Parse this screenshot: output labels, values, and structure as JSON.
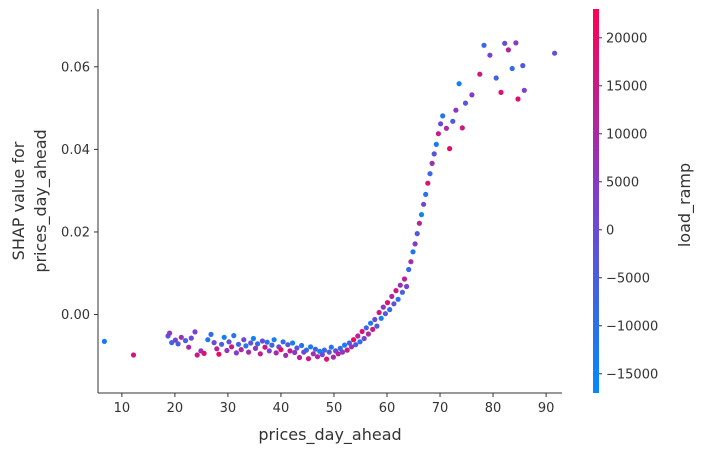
{
  "chart_data": {
    "type": "scatter",
    "title": "",
    "xlabel": "prices_day_ahead",
    "ylabel_lines": [
      "SHAP value for",
      "prices_day_ahead"
    ],
    "xlim": [
      5.5,
      93
    ],
    "ylim": [
      -0.019,
      0.074
    ],
    "xticks": [
      10,
      20,
      30,
      40,
      50,
      60,
      70,
      80,
      90
    ],
    "xtick_labels": [
      "10",
      "20",
      "30",
      "40",
      "50",
      "60",
      "70",
      "80",
      "90"
    ],
    "yticks": [
      0.0,
      0.02,
      0.04,
      0.06
    ],
    "ytick_labels": [
      "0.00",
      "0.02",
      "0.04",
      "0.06"
    ],
    "grid": false,
    "colorbar": {
      "label": "load_ramp",
      "range": [
        -17000,
        23000
      ],
      "ticks": [
        20000,
        15000,
        10000,
        5000,
        0,
        -5000,
        -10000,
        -15000
      ],
      "tick_labels": [
        "20000",
        "15000",
        "10000",
        "5000",
        "0",
        "−5000",
        "−10000",
        "−15000"
      ],
      "color_low": "#008afb",
      "color_mid": "#7c3fd0",
      "color_high": "#ff0052"
    },
    "points": [
      {
        "x": 6.7,
        "y": -0.0065,
        "c": -13000
      },
      {
        "x": 12.2,
        "y": -0.0098,
        "c": 16000
      },
      {
        "x": 18.7,
        "y": -0.0052,
        "c": -3000
      },
      {
        "x": 19.0,
        "y": -0.0045,
        "c": 5000
      },
      {
        "x": 19.4,
        "y": -0.0068,
        "c": -8000
      },
      {
        "x": 20.1,
        "y": -0.0062,
        "c": 2000
      },
      {
        "x": 20.6,
        "y": -0.0071,
        "c": -4000
      },
      {
        "x": 21.2,
        "y": -0.0055,
        "c": 8000
      },
      {
        "x": 22.0,
        "y": -0.0063,
        "c": -6000
      },
      {
        "x": 22.6,
        "y": -0.0079,
        "c": 10000
      },
      {
        "x": 23.1,
        "y": -0.0057,
        "c": -1000
      },
      {
        "x": 23.8,
        "y": -0.0042,
        "c": 3000
      },
      {
        "x": 24.2,
        "y": -0.0098,
        "c": 14000
      },
      {
        "x": 24.9,
        "y": -0.0088,
        "c": 6000
      },
      {
        "x": 25.5,
        "y": -0.0094,
        "c": 18000
      },
      {
        "x": 26.2,
        "y": -0.0061,
        "c": -12000
      },
      {
        "x": 26.8,
        "y": -0.0048,
        "c": -9000
      },
      {
        "x": 27.4,
        "y": -0.0068,
        "c": 0
      },
      {
        "x": 27.9,
        "y": -0.0083,
        "c": 12000
      },
      {
        "x": 28.3,
        "y": -0.0096,
        "c": 20000
      },
      {
        "x": 28.8,
        "y": -0.0072,
        "c": -5000
      },
      {
        "x": 29.3,
        "y": -0.0055,
        "c": -14000
      },
      {
        "x": 29.8,
        "y": -0.0087,
        "c": 7000
      },
      {
        "x": 30.2,
        "y": -0.0066,
        "c": -2000
      },
      {
        "x": 30.7,
        "y": -0.0078,
        "c": 15000
      },
      {
        "x": 31.1,
        "y": -0.0051,
        "c": -10000
      },
      {
        "x": 31.6,
        "y": -0.0093,
        "c": 4000
      },
      {
        "x": 32.0,
        "y": -0.0072,
        "c": -7000
      },
      {
        "x": 32.5,
        "y": -0.0085,
        "c": 11000
      },
      {
        "x": 33.0,
        "y": -0.0061,
        "c": 1000
      },
      {
        "x": 33.4,
        "y": -0.0076,
        "c": -11000
      },
      {
        "x": 33.9,
        "y": -0.0091,
        "c": 9000
      },
      {
        "x": 34.3,
        "y": -0.0069,
        "c": -3000
      },
      {
        "x": 34.8,
        "y": -0.0058,
        "c": -15000
      },
      {
        "x": 35.2,
        "y": -0.0082,
        "c": 6000
      },
      {
        "x": 35.6,
        "y": -0.0071,
        "c": -8000
      },
      {
        "x": 36.1,
        "y": -0.0095,
        "c": 13000
      },
      {
        "x": 36.5,
        "y": -0.0064,
        "c": -1000
      },
      {
        "x": 37.0,
        "y": -0.0079,
        "c": 17000
      },
      {
        "x": 37.4,
        "y": -0.0067,
        "c": -12000
      },
      {
        "x": 37.8,
        "y": -0.0088,
        "c": 2000
      },
      {
        "x": 38.3,
        "y": -0.0074,
        "c": -6000
      },
      {
        "x": 38.7,
        "y": -0.0061,
        "c": -13000
      },
      {
        "x": 39.1,
        "y": -0.0093,
        "c": 10000
      },
      {
        "x": 39.6,
        "y": -0.0078,
        "c": 0
      },
      {
        "x": 40.0,
        "y": -0.0085,
        "c": 19000
      },
      {
        "x": 40.4,
        "y": -0.0066,
        "c": -9000
      },
      {
        "x": 40.9,
        "y": -0.0099,
        "c": 8000
      },
      {
        "x": 41.3,
        "y": -0.0073,
        "c": -4000
      },
      {
        "x": 41.7,
        "y": -0.0088,
        "c": 14000
      },
      {
        "x": 42.2,
        "y": -0.0069,
        "c": -14000
      },
      {
        "x": 42.6,
        "y": -0.0092,
        "c": 5000
      },
      {
        "x": 43.0,
        "y": -0.0081,
        "c": -2000
      },
      {
        "x": 43.5,
        "y": -0.0104,
        "c": 12000
      },
      {
        "x": 43.9,
        "y": -0.0075,
        "c": -10000
      },
      {
        "x": 44.3,
        "y": -0.0091,
        "c": 3000
      },
      {
        "x": 44.8,
        "y": -0.0086,
        "c": -7000
      },
      {
        "x": 45.2,
        "y": -0.0107,
        "c": 16000
      },
      {
        "x": 45.6,
        "y": -0.0078,
        "c": -12000
      },
      {
        "x": 46.1,
        "y": -0.0095,
        "c": 7000
      },
      {
        "x": 46.5,
        "y": -0.0084,
        "c": -5000
      },
      {
        "x": 46.9,
        "y": -0.0102,
        "c": 11000
      },
      {
        "x": 47.3,
        "y": -0.0089,
        "c": -15000
      },
      {
        "x": 47.8,
        "y": -0.0097,
        "c": 1000
      },
      {
        "x": 48.2,
        "y": -0.0086,
        "c": -8000
      },
      {
        "x": 48.6,
        "y": -0.0108,
        "c": 18000
      },
      {
        "x": 49.1,
        "y": -0.0091,
        "c": -3000
      },
      {
        "x": 49.5,
        "y": -0.0079,
        "c": -11000
      },
      {
        "x": 49.9,
        "y": -0.0103,
        "c": 9000
      },
      {
        "x": 50.3,
        "y": -0.0088,
        "c": -1000
      },
      {
        "x": 50.8,
        "y": -0.0095,
        "c": 13000
      },
      {
        "x": 51.2,
        "y": -0.0082,
        "c": -9000
      },
      {
        "x": 51.6,
        "y": -0.0091,
        "c": 4000
      },
      {
        "x": 52.0,
        "y": -0.0074,
        "c": -13000
      },
      {
        "x": 52.5,
        "y": -0.0086,
        "c": 15000
      },
      {
        "x": 52.9,
        "y": -0.0069,
        "c": -6000
      },
      {
        "x": 53.3,
        "y": -0.0078,
        "c": 8000
      },
      {
        "x": 53.7,
        "y": -0.0061,
        "c": 20000
      },
      {
        "x": 54.1,
        "y": -0.0073,
        "c": -4000
      },
      {
        "x": 54.5,
        "y": -0.0052,
        "c": 12000
      },
      {
        "x": 54.9,
        "y": -0.0066,
        "c": -10000
      },
      {
        "x": 55.3,
        "y": -0.0041,
        "c": 17000
      },
      {
        "x": 55.7,
        "y": -0.0058,
        "c": 2000
      },
      {
        "x": 56.1,
        "y": -0.0032,
        "c": -7000
      },
      {
        "x": 56.5,
        "y": -0.0047,
        "c": 10000
      },
      {
        "x": 56.9,
        "y": -0.0021,
        "c": -12000
      },
      {
        "x": 57.3,
        "y": -0.0036,
        "c": 14000
      },
      {
        "x": 57.7,
        "y": -0.0012,
        "c": 0
      },
      {
        "x": 58.1,
        "y": -0.0028,
        "c": -5000
      },
      {
        "x": 58.5,
        "y": 0.0005,
        "c": 16000
      },
      {
        "x": 58.9,
        "y": -0.0009,
        "c": -14000
      },
      {
        "x": 59.3,
        "y": 0.0018,
        "c": 6000
      },
      {
        "x": 59.7,
        "y": 0.0002,
        "c": -3000
      },
      {
        "x": 60.1,
        "y": 0.0029,
        "c": 19000
      },
      {
        "x": 60.5,
        "y": 0.0012,
        "c": -9000
      },
      {
        "x": 60.9,
        "y": 0.0044,
        "c": 11000
      },
      {
        "x": 61.3,
        "y": 0.0026,
        "c": -1000
      },
      {
        "x": 61.7,
        "y": 0.0058,
        "c": 15000
      },
      {
        "x": 62.1,
        "y": 0.0037,
        "c": -11000
      },
      {
        "x": 62.5,
        "y": 0.0071,
        "c": 7000
      },
      {
        "x": 62.9,
        "y": 0.0054,
        "c": -6000
      },
      {
        "x": 63.3,
        "y": 0.0086,
        "c": 13000
      },
      {
        "x": 63.7,
        "y": 0.0068,
        "c": 2000
      },
      {
        "x": 64.1,
        "y": 0.0109,
        "c": -8000
      },
      {
        "x": 64.5,
        "y": 0.0128,
        "c": 9000
      },
      {
        "x": 64.9,
        "y": 0.0152,
        "c": -12000
      },
      {
        "x": 65.3,
        "y": 0.0171,
        "c": 5000
      },
      {
        "x": 65.7,
        "y": 0.0196,
        "c": -4000
      },
      {
        "x": 66.1,
        "y": 0.0221,
        "c": 12000
      },
      {
        "x": 66.5,
        "y": 0.0242,
        "c": -15000
      },
      {
        "x": 66.9,
        "y": 0.0267,
        "c": 1000
      },
      {
        "x": 67.3,
        "y": 0.0291,
        "c": -10000
      },
      {
        "x": 67.7,
        "y": 0.0318,
        "c": 17000
      },
      {
        "x": 68.1,
        "y": 0.0341,
        "c": -7000
      },
      {
        "x": 68.5,
        "y": 0.0366,
        "c": 8000
      },
      {
        "x": 68.9,
        "y": 0.0389,
        "c": -2000
      },
      {
        "x": 69.3,
        "y": 0.0412,
        "c": -13000
      },
      {
        "x": 69.7,
        "y": 0.0438,
        "c": 14000
      },
      {
        "x": 70.1,
        "y": 0.0462,
        "c": 0
      },
      {
        "x": 70.5,
        "y": 0.0481,
        "c": -11000
      },
      {
        "x": 71.2,
        "y": 0.0451,
        "c": 10000
      },
      {
        "x": 71.8,
        "y": 0.0402,
        "c": 20000
      },
      {
        "x": 72.4,
        "y": 0.0468,
        "c": -5000
      },
      {
        "x": 73.0,
        "y": 0.0495,
        "c": 6000
      },
      {
        "x": 73.6,
        "y": 0.0559,
        "c": -14000
      },
      {
        "x": 74.2,
        "y": 0.0452,
        "c": 15000
      },
      {
        "x": 74.8,
        "y": 0.0512,
        "c": -3000
      },
      {
        "x": 76.0,
        "y": 0.0532,
        "c": 4000
      },
      {
        "x": 77.5,
        "y": 0.0582,
        "c": 16000
      },
      {
        "x": 78.3,
        "y": 0.0652,
        "c": -8000
      },
      {
        "x": 79.4,
        "y": 0.0628,
        "c": 2000
      },
      {
        "x": 80.6,
        "y": 0.0573,
        "c": -6000
      },
      {
        "x": 81.5,
        "y": 0.0538,
        "c": 18000
      },
      {
        "x": 82.2,
        "y": 0.0657,
        "c": -1000
      },
      {
        "x": 82.9,
        "y": 0.0641,
        "c": 11000
      },
      {
        "x": 83.6,
        "y": 0.0596,
        "c": -9000
      },
      {
        "x": 84.3,
        "y": 0.0658,
        "c": 5000
      },
      {
        "x": 84.7,
        "y": 0.0522,
        "c": 19000
      },
      {
        "x": 85.6,
        "y": 0.0603,
        "c": -4000
      },
      {
        "x": 85.9,
        "y": 0.0543,
        "c": 3000
      },
      {
        "x": 91.6,
        "y": 0.0633,
        "c": -2000
      }
    ]
  }
}
